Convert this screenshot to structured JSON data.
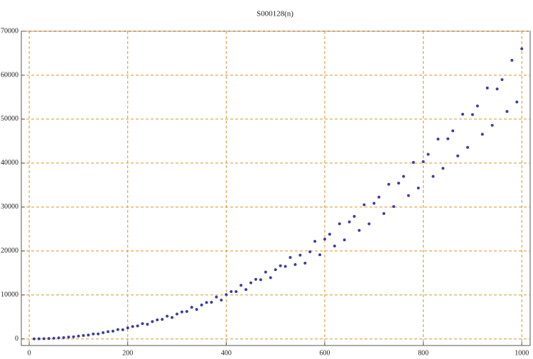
{
  "chart_data": {
    "type": "scatter",
    "title": "S000128(n)",
    "x": [
      10,
      20,
      30,
      40,
      50,
      60,
      70,
      80,
      90,
      100,
      110,
      120,
      130,
      140,
      150,
      160,
      170,
      180,
      190,
      200,
      210,
      220,
      230,
      240,
      250,
      260,
      270,
      280,
      290,
      300,
      310,
      320,
      330,
      340,
      350,
      360,
      370,
      380,
      390,
      400,
      410,
      420,
      430,
      440,
      450,
      460,
      470,
      480,
      490,
      500,
      510,
      520,
      530,
      540,
      550,
      560,
      570,
      580,
      590,
      600,
      610,
      620,
      630,
      640,
      650,
      660,
      670,
      680,
      690,
      700,
      710,
      720,
      730,
      740,
      750,
      760,
      770,
      780,
      790,
      800,
      810,
      820,
      830,
      840,
      850,
      860,
      870,
      880,
      890,
      900,
      910,
      920,
      930,
      940,
      950,
      960,
      970,
      980,
      990,
      1000
    ],
    "series": [
      {
        "color": "#3d3d9e",
        "values": [
          6,
          24,
          59,
          93,
          158,
          230,
          299,
          422,
          470,
          630,
          774,
          878,
          1115,
          1137,
          1418,
          1638,
          1763,
          2138,
          2094,
          2520,
          2822,
          2952,
          3491,
          3341,
          3938,
          4326,
          4447,
          5174,
          4878,
          5670,
          6150,
          6246,
          7187,
          6705,
          7718,
          8294,
          8351,
          9530,
          8822,
          10080,
          10758,
          10760,
          12203,
          11229,
          12758,
          13542,
          13475,
          15206,
          13926,
          15750,
          16646,
          16494,
          18539,
          16913,
          19058,
          17248,
          19819,
          22202,
          19146,
          22680,
          23814,
          21142,
          26195,
          22528,
          26618,
          27878,
          24690,
          30518,
          26186,
          30870,
          32262,
          28512,
          35171,
          30118,
          35438,
          36966,
          32610,
          40154,
          34326,
          40320,
          41990,
          36982,
          45467,
          38808,
          45518,
          47334,
          41630,
          51110,
          43566,
          51030,
          52998,
          46552,
          57083,
          48598,
          56858,
          58982,
          51750,
          63386,
          53906,
          66000
        ]
      }
    ],
    "xlim": [
      -16,
      1017
    ],
    "ylim": [
      -1500,
      70000
    ],
    "xticks": [
      0,
      200,
      400,
      600,
      800,
      1000
    ],
    "yticks": [
      0,
      10000,
      20000,
      30000,
      40000,
      50000,
      60000,
      70000
    ],
    "grid": true
  }
}
